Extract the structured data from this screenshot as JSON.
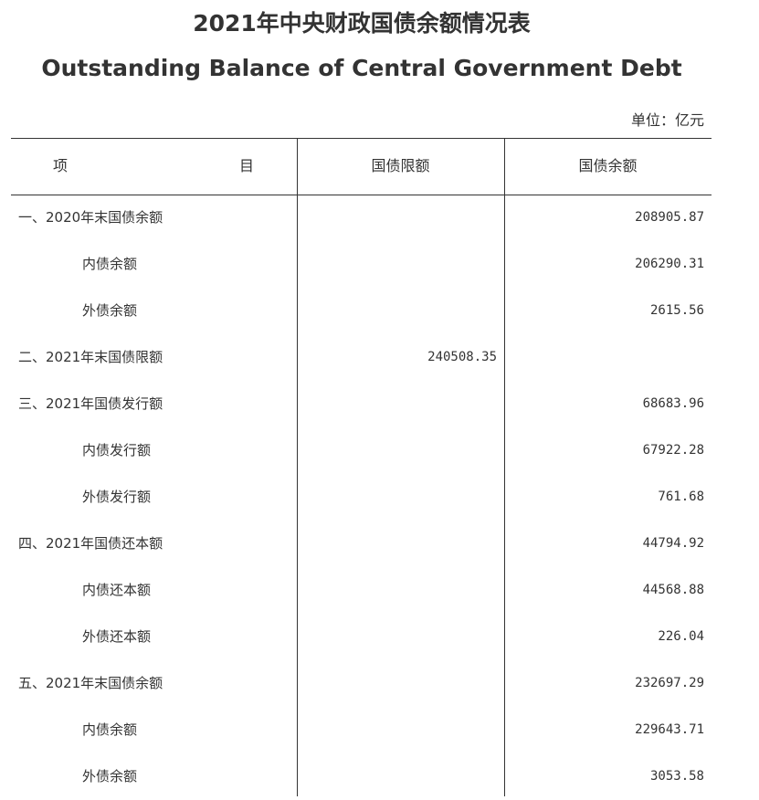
{
  "title_cn": "2021年中央财政国债余额情况表",
  "title_en": "Outstanding Balance of Central Government Debt",
  "unit": "单位：亿元",
  "header": {
    "item_a": "项",
    "item_b": "目",
    "limit": "国债限额",
    "balance": "国债余额"
  },
  "rows": [
    {
      "label": "一、2020年末国债余额",
      "limit": "",
      "balance": "208905.87"
    },
    {
      "label": "内债余额",
      "limit": "",
      "balance": "206290.31"
    },
    {
      "label": "外债余额",
      "limit": "",
      "balance": "2615.56"
    },
    {
      "label": "二、2021年末国债限额",
      "limit": "240508.35",
      "balance": ""
    },
    {
      "label": "三、2021年国债发行额",
      "limit": "",
      "balance": "68683.96"
    },
    {
      "label": "内债发行额",
      "limit": "",
      "balance": "67922.28"
    },
    {
      "label": "外债发行额",
      "limit": "",
      "balance": "761.68"
    },
    {
      "label": "四、2021年国债还本额",
      "limit": "",
      "balance": "44794.92"
    },
    {
      "label": "内债还本额",
      "limit": "",
      "balance": "44568.88"
    },
    {
      "label": "外债还本额",
      "limit": "",
      "balance": "226.04"
    },
    {
      "label": "五、2021年末国债余额",
      "limit": "",
      "balance": "232697.29"
    },
    {
      "label": "内债余额",
      "limit": "",
      "balance": "229643.71"
    },
    {
      "label": "外债余额",
      "limit": "",
      "balance": "3053.58"
    }
  ]
}
